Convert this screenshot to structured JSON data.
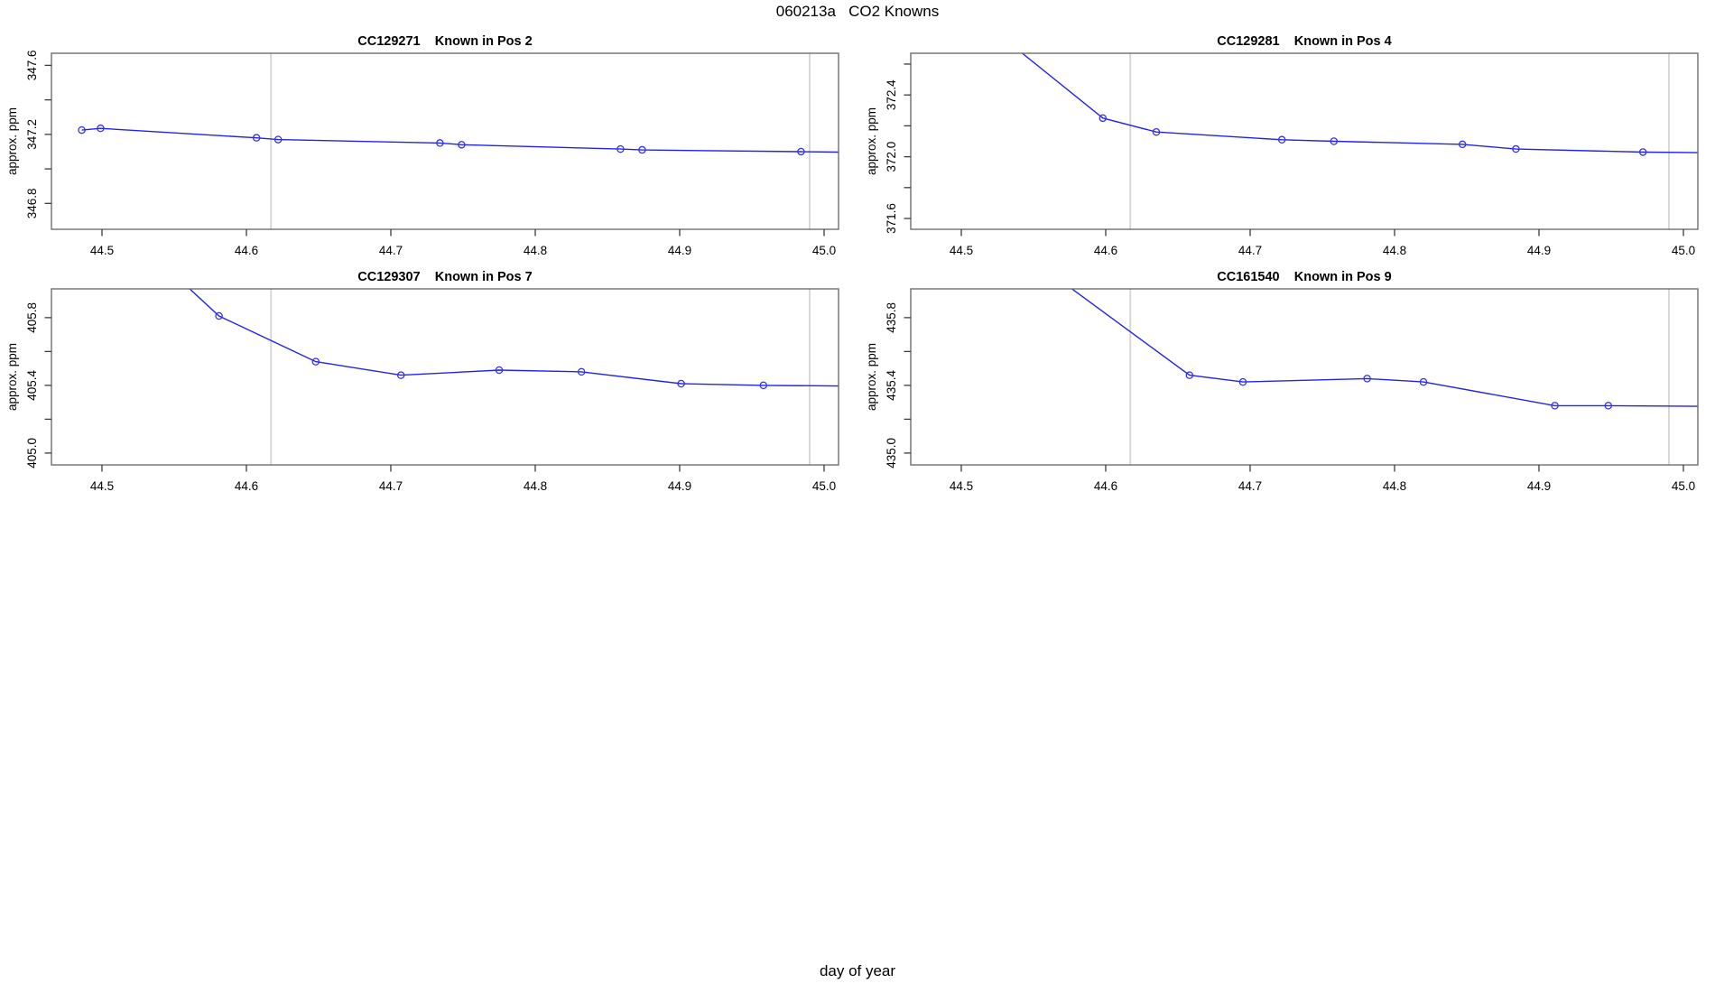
{
  "figure": {
    "title": "060213a   CO2 Knowns",
    "xlabel": "day of year",
    "colors": {
      "line": "#2222ee",
      "marker": "#3333ee",
      "box": "#6e6e6e",
      "tick": "#3c3c3c",
      "vline": "#d4d4d4",
      "text": "#000000",
      "background": "#ffffff"
    }
  },
  "chart_data": [
    {
      "type": "line",
      "title": "CC129271    Known in Pos 2",
      "sample_id": "CC129271",
      "position_label": "Known in Pos 2",
      "ylabel": "approx. ppm",
      "xlabel": "day of year",
      "xlim": [
        44.465,
        45.01
      ],
      "ylim": [
        346.65,
        347.67
      ],
      "xticks": [
        44.5,
        44.6,
        44.7,
        44.8,
        44.9,
        45.0
      ],
      "yticks": [
        346.8,
        347.0,
        347.2,
        347.4,
        347.6
      ],
      "yticks_labeled": [
        346.8,
        347.2,
        347.6
      ],
      "vlines": [
        44.617,
        44.99
      ],
      "x": [
        44.486,
        44.499,
        44.607,
        44.622,
        44.734,
        44.749,
        44.859,
        44.874,
        44.984
      ],
      "y": [
        347.225,
        347.235,
        347.18,
        347.17,
        347.15,
        347.14,
        347.115,
        347.11,
        347.1
      ],
      "clipped_entry_point": null,
      "line_extends_to_right_edge": true
    },
    {
      "type": "line",
      "title": "CC129281    Known in Pos 4",
      "sample_id": "CC129281",
      "position_label": "Known in Pos 4",
      "ylabel": "approx. ppm",
      "xlabel": "day of year",
      "xlim": [
        44.465,
        45.01
      ],
      "ylim": [
        371.53,
        372.67
      ],
      "xticks": [
        44.5,
        44.6,
        44.7,
        44.8,
        44.9,
        45.0
      ],
      "yticks": [
        371.6,
        371.8,
        372.0,
        372.2,
        372.4,
        372.6
      ],
      "yticks_labeled": [
        371.6,
        372.0,
        372.4
      ],
      "vlines": [
        44.617,
        44.99
      ],
      "x": [
        44.598,
        44.635,
        44.722,
        44.758,
        44.847,
        44.884,
        44.972
      ],
      "y": [
        372.25,
        372.16,
        372.11,
        372.1,
        372.08,
        372.05,
        372.03
      ],
      "clipped_entry_point": [
        44.505,
        372.95
      ],
      "line_extends_to_right_edge": true
    },
    {
      "type": "line",
      "title": "CC129307    Known in Pos 7",
      "sample_id": "CC129307",
      "position_label": "Known in Pos 7",
      "ylabel": "approx. ppm",
      "xlabel": "day of year",
      "xlim": [
        44.465,
        45.01
      ],
      "ylim": [
        404.93,
        405.97
      ],
      "xticks": [
        44.5,
        44.6,
        44.7,
        44.8,
        44.9,
        45.0
      ],
      "yticks": [
        405.0,
        405.2,
        405.4,
        405.6,
        405.8
      ],
      "yticks_labeled": [
        405.0,
        405.4,
        405.8
      ],
      "vlines": [
        44.617,
        44.99
      ],
      "x": [
        44.581,
        44.648,
        44.707,
        44.775,
        44.832,
        44.901,
        44.958
      ],
      "y": [
        405.81,
        405.54,
        405.46,
        405.49,
        405.48,
        405.41,
        405.4
      ],
      "clipped_entry_point": [
        44.5,
        406.45
      ],
      "line_extends_to_right_edge": true
    },
    {
      "type": "line",
      "title": "CC161540    Known in Pos 9",
      "sample_id": "CC161540",
      "position_label": "Known in Pos 9",
      "ylabel": "approx. ppm",
      "xlabel": "day of year",
      "xlim": [
        44.465,
        45.01
      ],
      "ylim": [
        434.93,
        435.97
      ],
      "xticks": [
        44.5,
        44.6,
        44.7,
        44.8,
        44.9,
        45.0
      ],
      "yticks": [
        435.0,
        435.2,
        435.4,
        435.6,
        435.8
      ],
      "yticks_labeled": [
        435.0,
        435.4,
        435.8
      ],
      "vlines": [
        44.617,
        44.99
      ],
      "x": [
        44.658,
        44.695,
        44.781,
        44.82,
        44.911,
        44.948
      ],
      "y": [
        435.46,
        435.42,
        435.44,
        435.42,
        435.28,
        435.28
      ],
      "clipped_entry_point": [
        44.5,
        436.45
      ],
      "line_extends_to_right_edge": true
    }
  ]
}
